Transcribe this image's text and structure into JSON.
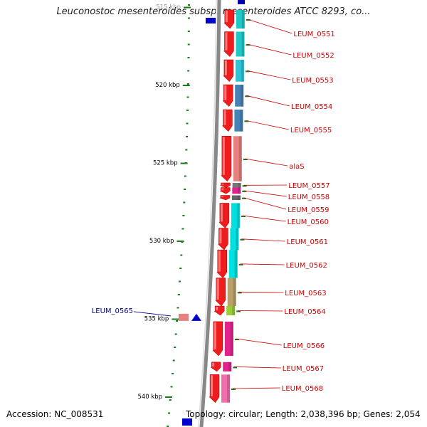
{
  "header": {
    "title": "Leuconostoc mesenteroides subsp. mesenteroides ATCC 8293, co..."
  },
  "footer": {
    "accession": "Accession: NC_008531",
    "summary": "Topology: circular; Length: 2,038,396 bp; Genes: 2,054"
  },
  "colors": {
    "forward_strand": "#ee1c1c",
    "backbone": "#888888",
    "label_red": "#cc0000",
    "label_blue": "#00008b",
    "tick_green": "#1a7a1a",
    "reverse_marker": "#0000cc"
  },
  "ruler": {
    "unit": "kbp",
    "ticks": [
      {
        "label": "515 kbp",
        "kbp": 515
      },
      {
        "label": "520 kbp",
        "kbp": 520
      },
      {
        "label": "525 kbp",
        "kbp": 525
      },
      {
        "label": "530 kbp",
        "kbp": 530
      },
      {
        "label": "535 kbp",
        "kbp": 535
      },
      {
        "label": "540 kbp",
        "kbp": 540
      }
    ]
  },
  "genes": [
    {
      "name": "LEUM_0551",
      "color": "#20c8c8",
      "start_kbp": 515.2,
      "end_kbp": 516.4
    },
    {
      "name": "LEUM_0552",
      "color": "#20c8c8",
      "start_kbp": 516.6,
      "end_kbp": 518.2
    },
    {
      "name": "LEUM_0553",
      "color": "#2ec4d8",
      "start_kbp": 518.4,
      "end_kbp": 519.8
    },
    {
      "name": "LEUM_0554",
      "color": "#4682b4",
      "start_kbp": 520.0,
      "end_kbp": 521.4
    },
    {
      "name": "LEUM_0555",
      "color": "#4682b4",
      "start_kbp": 521.6,
      "end_kbp": 523.0
    },
    {
      "name": "alaS",
      "color": "#e88080",
      "start_kbp": 523.3,
      "end_kbp": 526.2
    },
    {
      "name": "LEUM_0557",
      "color": "#777777",
      "start_kbp": 526.3,
      "end_kbp": 526.6
    },
    {
      "name": "LEUM_0558",
      "color": "#e0248c",
      "start_kbp": 526.6,
      "end_kbp": 527.0
    },
    {
      "name": "LEUM_0559",
      "color": "#666666",
      "start_kbp": 527.1,
      "end_kbp": 527.4
    },
    {
      "name": "LEUM_0560",
      "color": "#00e0e0",
      "start_kbp": 527.6,
      "end_kbp": 529.2
    },
    {
      "name": "LEUM_0561",
      "color": "#00e0e0",
      "start_kbp": 529.2,
      "end_kbp": 530.6
    },
    {
      "name": "LEUM_0562",
      "color": "#00e0e0",
      "start_kbp": 530.6,
      "end_kbp": 532.4
    },
    {
      "name": "LEUM_0563",
      "color": "#b8a068",
      "start_kbp": 532.4,
      "end_kbp": 534.2
    },
    {
      "name": "LEUM_0564",
      "color": "#9acd32",
      "start_kbp": 534.2,
      "end_kbp": 534.8
    },
    {
      "name": "LEUM_0566",
      "color": "#e0248c",
      "start_kbp": 535.2,
      "end_kbp": 537.4
    },
    {
      "name": "LEUM_0567",
      "color": "#e0248c",
      "start_kbp": 537.8,
      "end_kbp": 538.4
    },
    {
      "name": "LEUM_0568",
      "color": "#f06eaa",
      "start_kbp": 538.6,
      "end_kbp": 540.4
    }
  ],
  "reverse_genes": [
    {
      "name": "LEUM_0565",
      "color": "#e88080",
      "start_kbp": 534.7,
      "end_kbp": 535.0
    }
  ]
}
